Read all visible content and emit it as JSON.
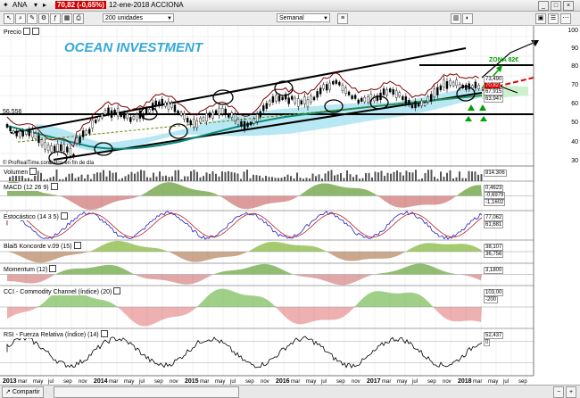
{
  "window": {
    "ticker": "ANA",
    "price": "70,82 (-0,65%)",
    "date_name": "12-ene-2018 ACCIONA"
  },
  "toolbar": {
    "units": "200 unidades",
    "period": "Semanal"
  },
  "colors": {
    "price_badge": "#d40000",
    "ema_cyan": "#9fe0f0",
    "trend_dark": "#000000",
    "sma_teal": "#0a8a7a",
    "zone_green": "#00aa00",
    "breakout_red": "#e00000",
    "logo_blue": "#35a8d8"
  },
  "chart": {
    "logo": "OCEAN INVESTMENT",
    "zone_label": "ZONA 82€",
    "source": "© ProRealTime.com",
    "source_suffix": "Datos en fin de día",
    "left_value": "56,556",
    "price_axis": [
      "100",
      "90",
      "80",
      "70",
      "60",
      "50",
      "40",
      "30"
    ],
    "price_tags": [
      "73,490",
      "70,82",
      "67,915",
      "63,947"
    ]
  },
  "panels": [
    {
      "id": "precio",
      "label": "Precio",
      "values": []
    },
    {
      "id": "volumen",
      "label": "Volumen",
      "values": [
        "814.306"
      ]
    },
    {
      "id": "macd",
      "label": "MACD (12 26 9)",
      "values": [
        "0,4623",
        "-0,6979",
        "-1,1602"
      ]
    },
    {
      "id": "estocastico",
      "label": "Estocástico (14 3 5)",
      "values": [
        "77,062",
        "61,681"
      ]
    },
    {
      "id": "blai",
      "label": "Blai5 Koncorde v.09 (15)",
      "values": [
        "38,107",
        "36,756"
      ]
    },
    {
      "id": "momentum",
      "label": "Momentum (12)",
      "values": [
        "3,1800"
      ]
    },
    {
      "id": "cci",
      "label": "CCI - Commodity Channel (índice) (20)",
      "values": [
        "103,00",
        "-200"
      ]
    },
    {
      "id": "rsi",
      "label": "RSI - Fuerza Relativa (índice) (14)",
      "values": [
        "52,437",
        "0"
      ]
    }
  ],
  "xaxis": [
    "2013",
    "mar",
    "may",
    "jul",
    "sep",
    "nov",
    "2014",
    "mar",
    "may",
    "jul",
    "sep",
    "nov",
    "2015",
    "mar",
    "may",
    "jul",
    "sep",
    "nov",
    "2016",
    "mar",
    "may",
    "jul",
    "sep",
    "nov",
    "2017",
    "mar",
    "may",
    "jul",
    "sep",
    "nov",
    "2018",
    "mar",
    "may",
    "jul",
    "sep"
  ],
  "statusbar": {
    "compartir": "Compartir"
  }
}
